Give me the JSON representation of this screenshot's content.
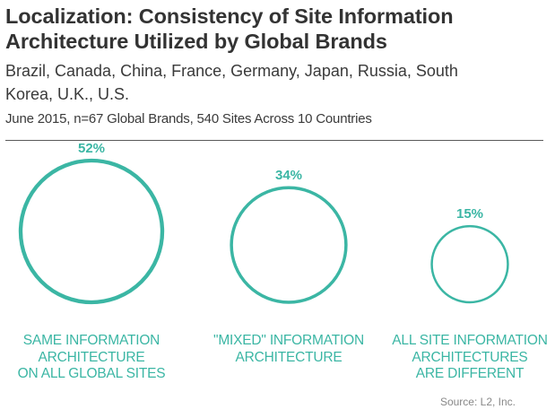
{
  "title": "Localization: Consistency of Site Information Architecture Utilized by Global Brands",
  "subtitle": "Brazil, Canada, China, France, Germany, Japan, Russia, South Korea, U.K., U.S.",
  "note": "June 2015, n=67 Global Brands, 540 Sites Across 10 Countries",
  "source": "Source: L2, Inc.",
  "colors": {
    "accent": "#3bb6a4"
  },
  "chart_data": {
    "type": "bubble",
    "categories": [
      "SAME INFORMATION ARCHITECTURE ON ALL GLOBAL SITES",
      "\"MIXED\" INFORMATION ARCHITECTURE",
      "ALL SITE INFORMATION ARCHITECTURES ARE DIFFERENT"
    ],
    "values": [
      52,
      34,
      15
    ],
    "value_labels": [
      "52%",
      "34%",
      "15%"
    ],
    "caption_lines": [
      [
        "SAME INFORMATION",
        "ARCHITECTURE",
        "ON ALL GLOBAL SITES"
      ],
      [
        "\"MIXED\" INFORMATION",
        "ARCHITECTURE"
      ],
      [
        "ALL SITE INFORMATION",
        "ARCHITECTURES",
        "ARE DIFFERENT"
      ]
    ],
    "marker_icon": "globe-icon"
  }
}
